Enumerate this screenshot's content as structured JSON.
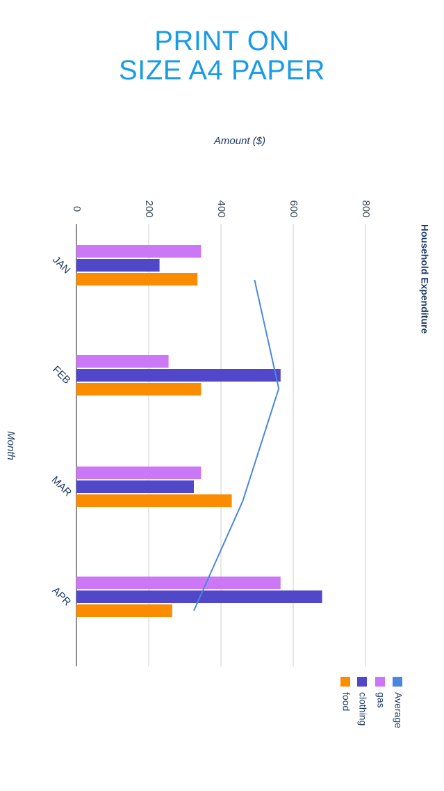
{
  "banner": {
    "line1": "PRINT ON",
    "line2": "SIZE A4 PAPER"
  },
  "colors": {
    "banner": "#1a9be6",
    "gas": "#cc77f5",
    "clothing": "#5048c8",
    "food": "#fb8c00",
    "average": "#4a86e0",
    "grid": "#cfcfcf",
    "axis": "#444444"
  },
  "chart_data": {
    "type": "bar",
    "orientation": "rotated 90deg clockwise (horizontal bars)",
    "title": "Household Expenditure",
    "xlabel": "Month",
    "ylabel": "Amount ($)",
    "ylim": [
      0,
      800
    ],
    "yticks": [
      "0",
      "200",
      "400",
      "600",
      "800"
    ],
    "categories": [
      "JAN",
      "FEB",
      "MAR",
      "APR"
    ],
    "grid": true,
    "legend_position": "bottom",
    "series": [
      {
        "name": "gas",
        "type": "bar",
        "color": "#cc77f5",
        "values": [
          345,
          255,
          345,
          565
        ]
      },
      {
        "name": "clothing",
        "type": "bar",
        "color": "#5048c8",
        "values": [
          230,
          565,
          325,
          680
        ]
      },
      {
        "name": "food",
        "type": "bar",
        "color": "#fb8c00",
        "values": [
          335,
          345,
          430,
          265
        ]
      },
      {
        "name": "Average",
        "type": "line",
        "color": "#4a86e0",
        "values": [
          493,
          560,
          460,
          325
        ]
      }
    ],
    "legend": [
      "Average",
      "gas",
      "clothing",
      "food"
    ]
  }
}
